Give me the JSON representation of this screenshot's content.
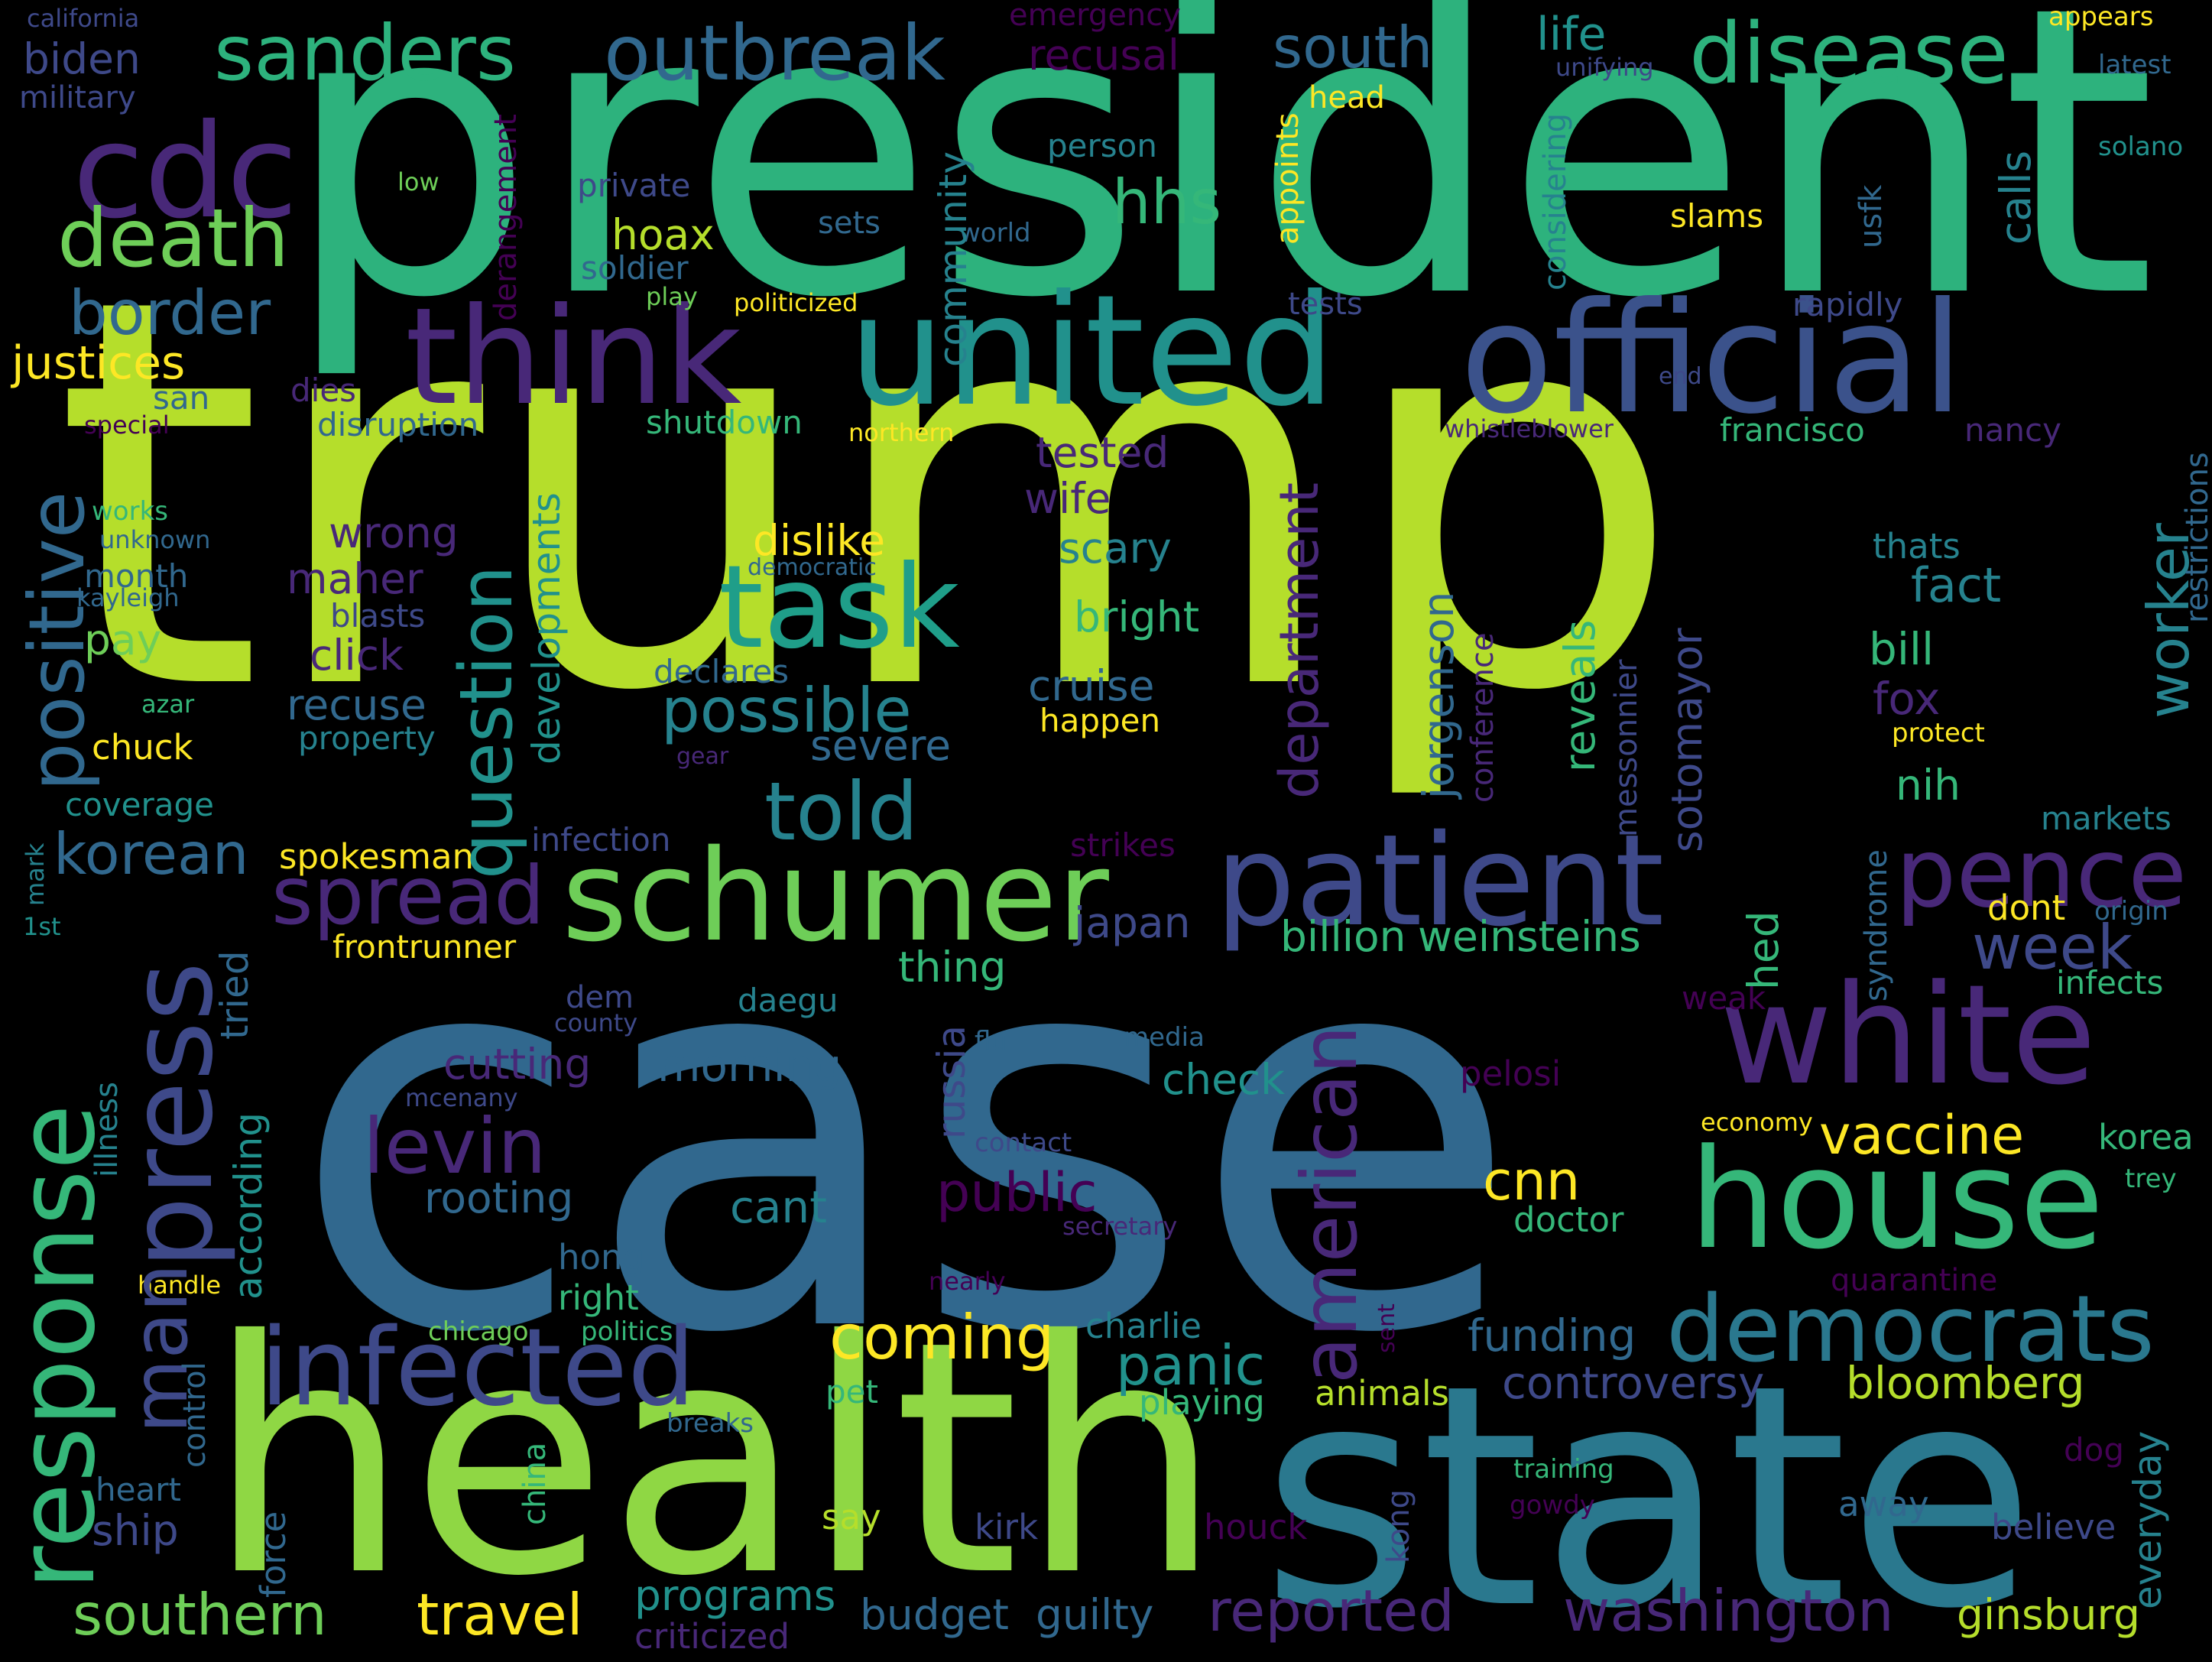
{
  "colors": {
    "background": "#000000",
    "yellow": "#fde725",
    "lime": "#b5de2b",
    "green": "#6ece58",
    "emerald": "#35b779",
    "teal": "#1f9e89",
    "tealblue": "#26828e",
    "blue": "#31688e",
    "indigo": "#3e4989",
    "purple": "#482878",
    "darkpurple": "#440154"
  },
  "words": {
    "trump": "trump",
    "case": "case",
    "president": "president",
    "health": "health",
    "state": "state",
    "united": "united",
    "official": "official",
    "think": "think",
    "cdc": "cdc",
    "sanders": "sanders",
    "outbreak": "outbreak",
    "disease": "disease",
    "death": "death",
    "border": "border",
    "justices": "justices",
    "biden": "biden",
    "military": "military",
    "california": "california",
    "task": "task",
    "schumer": "schumer",
    "patient": "patient",
    "white": "white",
    "house": "house",
    "democrats": "democrats",
    "infected": "infected",
    "response": "response",
    "press": "press",
    "man": "man",
    "positive": "positive",
    "pence": "pence",
    "spread": "spread",
    "levin": "levin",
    "told": "told",
    "possible": "possible",
    "question": "question",
    "american": "american",
    "public": "public",
    "korean": "korean",
    "southern": "southern",
    "travel": "travel",
    "reported": "reported",
    "washington": "washington",
    "coming": "coming",
    "vaccine": "vaccine",
    "week": "week",
    "hhs": "hhs",
    "south": "south",
    "life": "life",
    "emergency": "emergency",
    "recusal": "recusal",
    "head": "head",
    "appears": "appears",
    "latest": "latest",
    "unifying": "unifying",
    "solano": "solano",
    "community": "community",
    "calls": "calls",
    "slams": "slams",
    "person": "person",
    "private": "private",
    "low": "low",
    "hoax": "hoax",
    "sets": "sets",
    "world": "world",
    "soldier": "soldier",
    "play": "play",
    "politicized": "politicized",
    "derangement": "derangement",
    "appoints": "appoints",
    "considering": "considering",
    "usfk": "usfk",
    "tests": "tests",
    "rapidly": "rapidly",
    "end": "end",
    "san": "san",
    "dies": "dies",
    "special": "special",
    "disruption": "disruption",
    "shutdown": "shutdown",
    "northern": "northern",
    "whistleblower": "whistleblower",
    "francisco": "francisco",
    "nancy": "nancy",
    "restrictions": "restrictions",
    "tested": "tested",
    "wife": "wife",
    "works": "works",
    "unknown": "unknown",
    "wrong": "wrong",
    "dislike": "dislike",
    "scary": "scary",
    "thats": "thats",
    "fact": "fact",
    "worker": "worker",
    "month": "month",
    "democratic": "democratic",
    "kayleigh": "kayleigh",
    "maher": "maher",
    "blasts": "blasts",
    "developments": "developments",
    "bright": "bright",
    "department": "department",
    "jorgenson": "jorgenson",
    "conference": "conference",
    "reveals": "reveals",
    "bill": "bill",
    "pay": "pay",
    "click": "click",
    "declares": "declares",
    "sotomayor": "sotomayor",
    "messonnier": "messonnier",
    "cruise": "cruise",
    "fox": "fox",
    "azar": "azar",
    "recuse": "recuse",
    "happen": "happen",
    "protect": "protect",
    "chuck": "chuck",
    "property": "property",
    "severe": "severe",
    "gear": "gear",
    "nih": "nih",
    "coverage": "coverage",
    "markets": "markets",
    "mark": "mark",
    "spokesman": "spokesman",
    "infection": "infection",
    "strikes": "strikes",
    "syndrome": "syndrome",
    "origin": "origin",
    "dont": "dont",
    "1st": "1st",
    "japan": "japan",
    "frontrunner": "frontrunner",
    "billion": "billion",
    "weinsteins": "weinsteins",
    "hed": "hed",
    "infects": "infects",
    "tried": "tried",
    "thing": "thing",
    "dem": "dem",
    "county": "county",
    "daegu": "daegu",
    "weak": "weak",
    "illness": "illness",
    "according": "according",
    "cutting": "cutting",
    "morning": "morning",
    "russia": "russia",
    "flu": "flu",
    "media": "media",
    "check": "check",
    "pelosi": "pelosi",
    "mcenany": "mcenany",
    "economy": "economy",
    "korea": "korea",
    "contact": "contact",
    "rooting": "rooting",
    "cnn": "cnn",
    "trey": "trey",
    "cant": "cant",
    "secretary": "secretary",
    "doctor": "doctor",
    "hong": "hong",
    "handle": "handle",
    "nearly": "nearly",
    "quarantine": "quarantine",
    "right": "right",
    "control": "control",
    "chicago": "chicago",
    "politics": "politics",
    "charlie": "charlie",
    "sent": "sent",
    "funding": "funding",
    "panic": "panic",
    "controversy": "controversy",
    "bloomberg": "bloomberg",
    "pet": "pet",
    "playing": "playing",
    "animals": "animals",
    "everyday": "everyday",
    "breaks": "breaks",
    "china": "china",
    "dog": "dog",
    "heart": "heart",
    "training": "training",
    "force": "force",
    "say": "say",
    "kong": "kong",
    "gowdy": "gowdy",
    "away": "away",
    "ship": "ship",
    "kirk": "kirk",
    "houck": "houck",
    "believe": "believe",
    "programs": "programs",
    "budget": "budget",
    "guilty": "guilty",
    "ginsburg": "ginsburg",
    "criticized": "criticized"
  }
}
